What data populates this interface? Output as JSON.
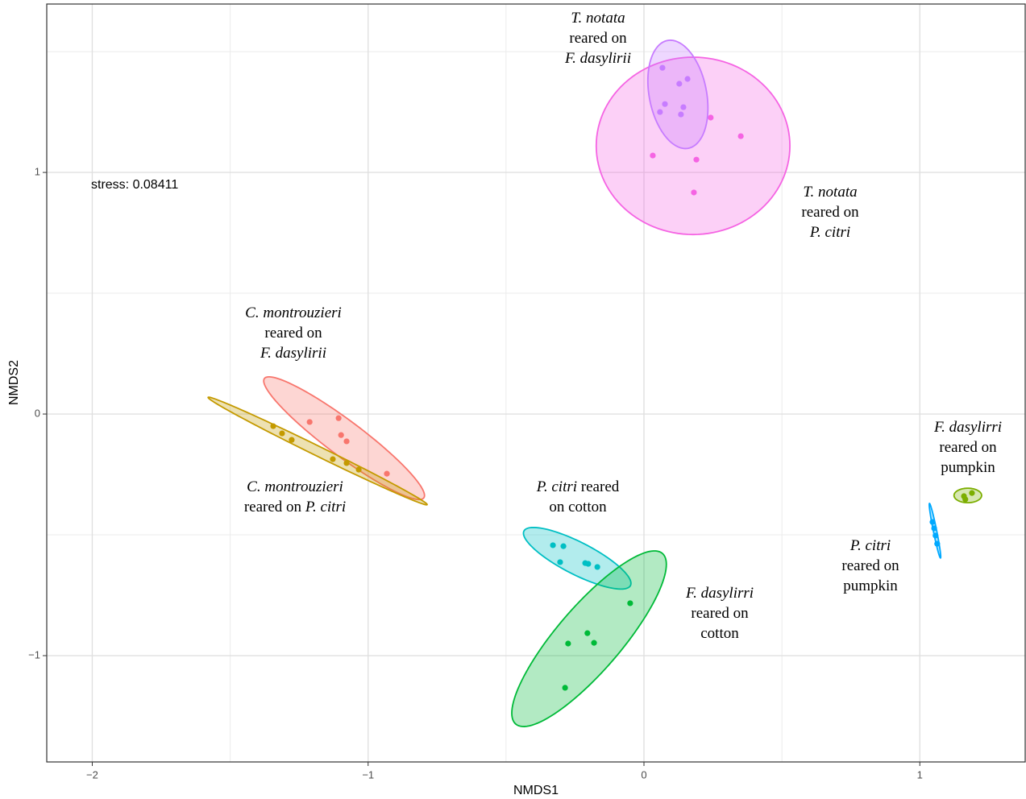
{
  "chart_data": {
    "type": "scatter",
    "x_label": "NMDS1",
    "y_label": "NMDS2",
    "xlim": [
      -2.165,
      1.382
    ],
    "ylim": [
      -1.44,
      1.697
    ],
    "xticks": [
      {
        "value": -2,
        "label": "−2"
      },
      {
        "value": -1,
        "label": "−1"
      },
      0,
      1
    ],
    "yticks": [
      {
        "value": -1,
        "label": "−1"
      },
      0,
      1
    ],
    "x_minor_grid": [
      -1.5,
      -0.5,
      0.5
    ],
    "y_minor_grid": [
      -0.5,
      0.5,
      1.5
    ],
    "grid": true,
    "annotations": [
      "stress: 0.08411"
    ],
    "series": [
      {
        "color": "#f564e3",
        "x": [
          0.032,
          0.19,
          0.181,
          0.242,
          0.351
        ],
        "y": [
          1.07,
          1.053,
          0.917,
          1.227,
          1.15
        ],
        "ellipse": {
          "center": [
            0.178,
            1.11
          ],
          "u": [
            0.351,
            0
          ],
          "v": [
            0,
            0.367
          ]
        },
        "annotation": [
          [
            {
              "text": "T. notata",
              "italic": true
            }
          ],
          [
            {
              "text": "reared on",
              "italic": false
            }
          ],
          [
            {
              "text": "P. citri",
              "italic": true
            }
          ]
        ]
      },
      {
        "color": "#c77cff",
        "x": [
          0.067,
          0.128,
          0.158,
          0.076,
          0.058,
          0.143,
          0.134
        ],
        "y": [
          1.433,
          1.367,
          1.387,
          1.283,
          1.25,
          1.27,
          1.24
        ],
        "ellipse": {
          "center": [
            0.123,
            1.323
          ],
          "u": [
            -0.038,
            0.223
          ],
          "v": [
            0.102,
            0.023
          ]
        },
        "annotation": [
          [
            {
              "text": "T. notata",
              "italic": true
            }
          ],
          [
            {
              "text": "reared on",
              "italic": false
            }
          ],
          [
            {
              "text": "F. dasylirii",
              "italic": true
            }
          ]
        ]
      },
      {
        "color": "#f8766d",
        "x": [
          -1.212,
          -1.107,
          -1.098,
          -1.078,
          -0.932
        ],
        "y": [
          -0.033,
          -0.017,
          -0.087,
          -0.113,
          -0.247
        ],
        "ellipse": {
          "center": [
            -1.087,
            -0.1
          ],
          "u": [
            -0.289,
            0.247
          ],
          "v": [
            0.038,
            0.059
          ]
        },
        "annotation": [
          [
            {
              "text": "C. montrouzieri",
              "italic": true
            }
          ],
          [
            {
              "text": "reared on",
              "italic": false
            }
          ],
          [
            {
              "text": "F. dasylirii",
              "italic": true
            }
          ]
        ]
      },
      {
        "color": "#c49a00",
        "x": [
          -1.344,
          -1.312,
          -1.277,
          -1.128,
          -1.078,
          -1.034
        ],
        "y": [
          -0.05,
          -0.08,
          -0.107,
          -0.187,
          -0.203,
          -0.23
        ],
        "ellipse": {
          "center": [
            -1.183,
            -0.153
          ],
          "u": [
            -0.397,
            0.222
          ],
          "v": [
            0.008,
            0.018
          ]
        },
        "annotation": [
          [
            {
              "text": "C. montrouzieri",
              "italic": true
            }
          ],
          [
            {
              "text": "reared on ",
              "italic": false
            },
            {
              "text": "P. citri",
              "italic": true
            }
          ]
        ]
      },
      {
        "color": "#00bfc4",
        "x": [
          -0.33,
          -0.292,
          -0.304,
          -0.213,
          -0.202,
          -0.169
        ],
        "y": [
          -0.543,
          -0.547,
          -0.613,
          -0.617,
          -0.62,
          -0.633
        ],
        "ellipse": {
          "center": [
            -0.242,
            -0.597
          ],
          "u": [
            -0.193,
            0.113
          ],
          "v": [
            0.027,
            0.059
          ]
        },
        "annotation": [
          [
            {
              "text": "P. citri",
              "italic": true
            },
            {
              "text": " reared",
              "italic": false
            }
          ],
          [
            {
              "text": "on cotton",
              "italic": false
            }
          ]
        ]
      },
      {
        "color": "#00ba38",
        "x": [
          -0.05,
          -0.205,
          -0.275,
          -0.181,
          -0.286
        ],
        "y": [
          -0.783,
          -0.907,
          -0.95,
          -0.947,
          -1.133
        ],
        "ellipse": {
          "center": [
            -0.199,
            -0.93
          ],
          "u": [
            0.266,
            0.353
          ],
          "v": [
            0.088,
            -0.087
          ]
        },
        "annotation": [
          [
            {
              "text": "F. dasylirri",
              "italic": true
            }
          ],
          [
            {
              "text": "reared on",
              "italic": false
            }
          ],
          [
            {
              "text": "cotton",
              "italic": false
            }
          ]
        ]
      },
      {
        "color": "#00a9ff",
        "x": [
          1.046,
          1.052,
          1.057,
          1.063
        ],
        "y": [
          -0.447,
          -0.473,
          -0.503,
          -0.537
        ],
        "ellipse": {
          "center": [
            1.055,
            -0.483
          ],
          "u": [
            -0.02,
            0.113
          ],
          "v": [
            0.006,
            0.001
          ]
        },
        "annotation": [
          [
            {
              "text": "P. citri",
              "italic": true
            }
          ],
          [
            {
              "text": "reared on",
              "italic": false
            }
          ],
          [
            {
              "text": "pumpkin",
              "italic": false
            }
          ]
        ]
      },
      {
        "color": "#7cae00",
        "x": [
          1.16,
          1.189,
          1.165
        ],
        "y": [
          -0.34,
          -0.327,
          -0.353
        ],
        "ellipse": {
          "center": [
            1.174,
            -0.337
          ],
          "u": [
            0.05,
            0
          ],
          "v": [
            0,
            0.03
          ]
        },
        "annotation": [
          [
            {
              "text": "F. dasylirri",
              "italic": true
            }
          ],
          [
            {
              "text": "reared on",
              "italic": false
            }
          ],
          [
            {
              "text": "pumpkin",
              "italic": false
            }
          ]
        ]
      }
    ]
  }
}
